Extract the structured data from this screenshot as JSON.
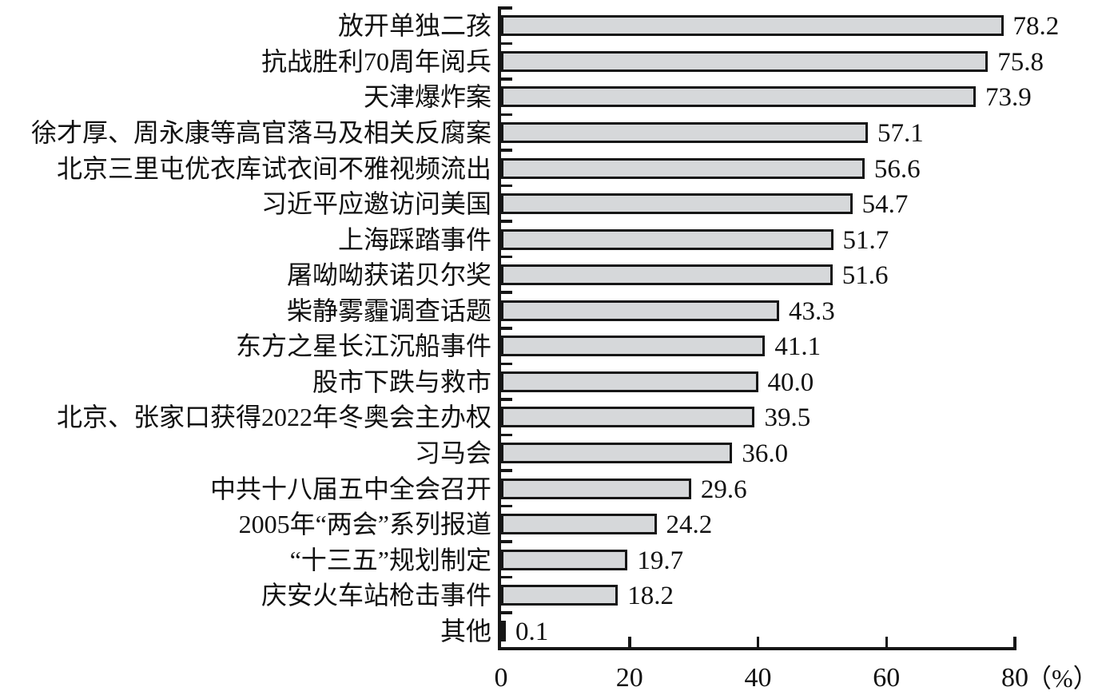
{
  "chart_data": {
    "type": "bar",
    "orientation": "horizontal",
    "title": "",
    "xlabel": "",
    "ylabel": "",
    "unit": "（%）",
    "xlim": [
      0,
      80
    ],
    "xticks": [
      0,
      20,
      40,
      60,
      80
    ],
    "xtick_labels": [
      "0",
      "20",
      "40",
      "60",
      "80"
    ],
    "grid": false,
    "legend": false,
    "bar_fill_color": "#d6d8da",
    "bar_border_color": "#161616",
    "axis_color": "#161616",
    "categories": [
      "放开单独二孩",
      "抗战胜利70周年阅兵",
      "天津爆炸案",
      "徐才厚、周永康等高官落马及相关反腐案",
      "北京三里屯优衣库试衣间不雅视频流出",
      "习近平应邀访问美国",
      "上海踩踏事件",
      "屠呦呦获诺贝尔奖",
      "柴静雾霾调查话题",
      "东方之星长江沉船事件",
      "股市下跌与救市",
      "北京、张家口获得2022年冬奥会主办权",
      "习马会",
      "中共十八届五中全会召开",
      "2005年“两会”系列报道",
      "“十三五”规划制定",
      "庆安火车站枪击事件",
      "其他"
    ],
    "values": [
      78.2,
      75.8,
      73.9,
      57.1,
      56.6,
      54.7,
      51.7,
      51.6,
      43.3,
      41.1,
      40.0,
      39.5,
      36.0,
      29.6,
      24.2,
      19.7,
      18.2,
      0.1
    ],
    "value_labels": [
      "78.2",
      "75.8",
      "73.9",
      "57.1",
      "56.6",
      "54.7",
      "51.7",
      "51.6",
      "43.3",
      "41.1",
      "40.0",
      "39.5",
      "36.0",
      "29.6",
      "24.2",
      "19.7",
      "18.2",
      "0.1"
    ]
  }
}
